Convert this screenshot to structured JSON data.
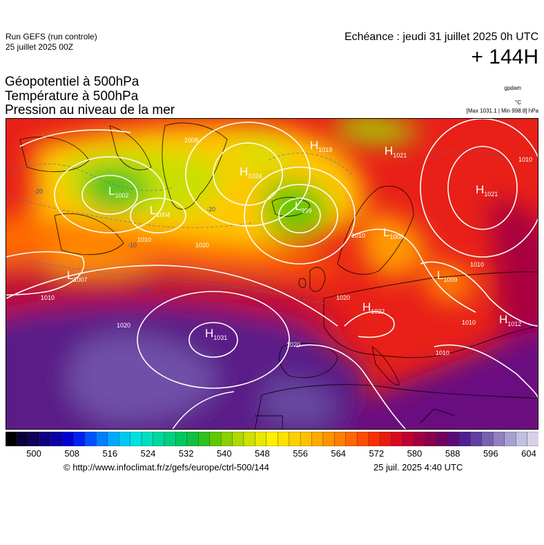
{
  "header": {
    "run_title": "Run GEFS (run controle)",
    "run_date": "25 juillet 2025 00Z",
    "valid_time": "Echéance : jeudi 31 juillet 2025 0h UTC",
    "lead_time": "+ 144H"
  },
  "parameters": {
    "line1": "Géopotentiel à 500hPa",
    "line2": "Température à 500hPa",
    "line3": "Pression au niveau de la mer"
  },
  "units": {
    "geopotential": "gpdam",
    "temperature": "°C",
    "pressure_extremes": "[Max 1031.1 | Min 998.8] hPa"
  },
  "map": {
    "icon": "weather-map-europe",
    "pressure_centers": [
      {
        "type": "L",
        "value": "1002"
      },
      {
        "type": "L",
        "value": "1004"
      },
      {
        "type": "H",
        "value": "1024"
      },
      {
        "type": "L",
        "value": "999"
      },
      {
        "type": "H",
        "value": "1019"
      },
      {
        "type": "H",
        "value": "1021"
      },
      {
        "type": "H",
        "value": "1021"
      },
      {
        "type": "L",
        "value": "1007"
      },
      {
        "type": "L",
        "value": "1005"
      },
      {
        "type": "L",
        "value": "1009"
      },
      {
        "type": "H",
        "value": "1031"
      },
      {
        "type": "H",
        "value": "1022"
      },
      {
        "type": "H",
        "value": "1012"
      }
    ],
    "isobar_labels": [
      "1008",
      "1010",
      "1020",
      "1010",
      "1010",
      "1010",
      "1020",
      "1020",
      "1010",
      "1010",
      "1010",
      "1020"
    ],
    "temperature_labels": [
      "-20",
      "-20",
      "-10",
      "-10"
    ]
  },
  "colorbar": {
    "labels": [
      "500",
      "508",
      "516",
      "524",
      "532",
      "540",
      "548",
      "556",
      "564",
      "572",
      "580",
      "588",
      "596",
      "604"
    ],
    "colors": [
      "#000000",
      "#08003a",
      "#10005a",
      "#100080",
      "#0a00a8",
      "#0000d0",
      "#0020f0",
      "#0050ff",
      "#0080ff",
      "#00a8ff",
      "#00c8f0",
      "#00e0e0",
      "#00e0c0",
      "#00d8a0",
      "#00d080",
      "#00c860",
      "#10c040",
      "#30c020",
      "#60c800",
      "#88d000",
      "#b0d800",
      "#d0e000",
      "#e8e800",
      "#fff000",
      "#ffe000",
      "#ffd000",
      "#ffc000",
      "#ffaa00",
      "#ff9400",
      "#ff7e00",
      "#ff6600",
      "#ff4c00",
      "#f83000",
      "#e81c10",
      "#d80a20",
      "#c00030",
      "#a00040",
      "#880050",
      "#700060",
      "#5c0a78",
      "#502090",
      "#6040a0",
      "#7860b0",
      "#9080c0",
      "#a8a0d0",
      "#c0c0e0",
      "#d8d0e8"
    ]
  },
  "footer": {
    "copyright": "© http://www.infoclimat.fr/z/gefs/europe/ctrl-500/144",
    "generated": "25 juil. 2025  4:40 UTC"
  }
}
